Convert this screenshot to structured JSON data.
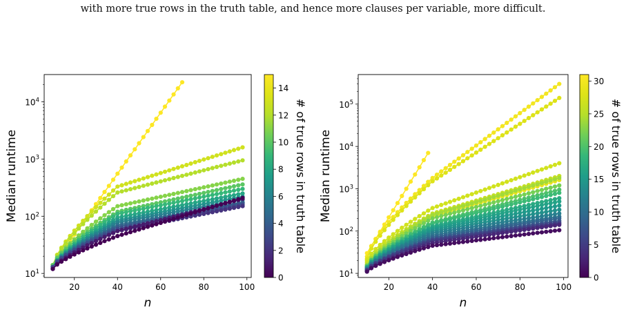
{
  "caption": "with more true rows in the truth table, and hence more clauses per variable, more difficult.",
  "chart_data": [
    {
      "type": "scatter",
      "xlabel": "n",
      "ylabel": "Median runtime",
      "colorbar_label": "# of true rows in truth table",
      "yscale": "log",
      "xlim": [
        6,
        102
      ],
      "ylim": [
        8.5,
        30000
      ],
      "xticks": [
        "20",
        "40",
        "60",
        "80",
        "100"
      ],
      "yticks": [
        "10^1",
        "10^2",
        "10^3",
        "10^4"
      ],
      "colorbar_range": [
        0,
        15
      ],
      "colorbar_ticks": [
        "0",
        "2",
        "4",
        "6",
        "8",
        "10",
        "12",
        "14"
      ],
      "series": [
        {
          "k": 15,
          "x": [
            10,
            70
          ],
          "y": [
            14,
            22000
          ]
        },
        {
          "k": 13,
          "x": [
            10,
            40,
            98
          ],
          "y": [
            14,
            330,
            1600
          ]
        },
        {
          "k": 12,
          "x": [
            10,
            40,
            98
          ],
          "y": [
            14,
            260,
            950
          ]
        },
        {
          "k": 11,
          "x": [
            10,
            40,
            98
          ],
          "y": [
            14,
            150,
            450
          ]
        },
        {
          "k": 10,
          "x": [
            10,
            40,
            98
          ],
          "y": [
            14,
            120,
            360
          ]
        },
        {
          "k": 9,
          "x": [
            10,
            40,
            98
          ],
          "y": [
            13,
            110,
            300
          ]
        },
        {
          "k": 8,
          "x": [
            10,
            40,
            98
          ],
          "y": [
            13,
            95,
            250
          ]
        },
        {
          "k": 7,
          "x": [
            10,
            40,
            98
          ],
          "y": [
            13,
            85,
            220
          ]
        },
        {
          "k": 6,
          "x": [
            10,
            40,
            98
          ],
          "y": [
            13,
            78,
            195
          ]
        },
        {
          "k": 5,
          "x": [
            10,
            40,
            98
          ],
          "y": [
            13,
            70,
            175
          ]
        },
        {
          "k": 4,
          "x": [
            10,
            40,
            98
          ],
          "y": [
            13,
            65,
            170
          ]
        },
        {
          "k": 3,
          "x": [
            10,
            40,
            98
          ],
          "y": [
            13,
            60,
            160
          ]
        },
        {
          "k": 2,
          "x": [
            10,
            40,
            98
          ],
          "y": [
            12,
            55,
            150
          ]
        },
        {
          "k": 1,
          "x": [
            10,
            40,
            98
          ],
          "y": [
            12,
            55,
            200
          ]
        },
        {
          "k": 0,
          "x": [
            10,
            40,
            98
          ],
          "y": [
            12,
            45,
            210
          ]
        }
      ]
    },
    {
      "type": "scatter",
      "xlabel": "n",
      "ylabel": "Median runtime",
      "colorbar_label": "# of true rows in truth table",
      "yscale": "log",
      "xlim": [
        6,
        102
      ],
      "ylim": [
        8,
        500000
      ],
      "xticks": [
        "20",
        "40",
        "60",
        "80",
        "100"
      ],
      "yticks": [
        "10^1",
        "10^2",
        "10^3",
        "10^4",
        "10^5"
      ],
      "colorbar_range": [
        0,
        31
      ],
      "colorbar_ticks": [
        "0",
        "5",
        "10",
        "15",
        "20",
        "25",
        "30"
      ],
      "series": [
        {
          "k": 31,
          "x": [
            10,
            38
          ],
          "y": [
            30,
            7000
          ]
        },
        {
          "k": 30,
          "x": [
            10,
            40,
            98
          ],
          "y": [
            25,
            1800,
            300000
          ]
        },
        {
          "k": 28,
          "x": [
            10,
            40,
            98
          ],
          "y": [
            22,
            1500,
            140000
          ]
        },
        {
          "k": 27,
          "x": [
            10,
            40,
            98
          ],
          "y": [
            20,
            350,
            4000
          ]
        },
        {
          "k": 26,
          "x": [
            10,
            40,
            98
          ],
          "y": [
            18,
            260,
            2000
          ]
        },
        {
          "k": 29,
          "x": [
            10,
            40,
            98
          ],
          "y": [
            16,
            220,
            1600
          ]
        },
        {
          "k": 24,
          "x": [
            10,
            40,
            98
          ],
          "y": [
            16,
            240,
            1800
          ]
        },
        {
          "k": 22,
          "x": [
            10,
            40,
            98
          ],
          "y": [
            15,
            200,
            1200
          ]
        },
        {
          "k": 20,
          "x": [
            10,
            40,
            98
          ],
          "y": [
            15,
            160,
            950
          ]
        },
        {
          "k": 19,
          "x": [
            10,
            40,
            98
          ],
          "y": [
            14,
            150,
            800
          ]
        },
        {
          "k": 17,
          "x": [
            10,
            40,
            98
          ],
          "y": [
            14,
            130,
            600
          ]
        },
        {
          "k": 16,
          "x": [
            10,
            40,
            98
          ],
          "y": [
            14,
            120,
            500
          ]
        },
        {
          "k": 15,
          "x": [
            10,
            40,
            98
          ],
          "y": [
            13,
            110,
            400
          ]
        },
        {
          "k": 14,
          "x": [
            10,
            40,
            98
          ],
          "y": [
            13,
            100,
            320
          ]
        },
        {
          "k": 12,
          "x": [
            10,
            40,
            98
          ],
          "y": [
            13,
            90,
            260
          ]
        },
        {
          "k": 11,
          "x": [
            10,
            40,
            98
          ],
          "y": [
            13,
            80,
            220
          ]
        },
        {
          "k": 9,
          "x": [
            10,
            40,
            98
          ],
          "y": [
            12,
            72,
            200
          ]
        },
        {
          "k": 8,
          "x": [
            10,
            40,
            98
          ],
          "y": [
            12,
            66,
            175
          ]
        },
        {
          "k": 6,
          "x": [
            10,
            40,
            98
          ],
          "y": [
            12,
            62,
            160
          ]
        },
        {
          "k": 5,
          "x": [
            10,
            40,
            98
          ],
          "y": [
            12,
            58,
            150
          ]
        },
        {
          "k": 3,
          "x": [
            10,
            40,
            98
          ],
          "y": [
            11,
            52,
            140
          ]
        },
        {
          "k": 1,
          "x": [
            10,
            40,
            98
          ],
          "y": [
            11,
            45,
            105
          ]
        }
      ]
    }
  ]
}
